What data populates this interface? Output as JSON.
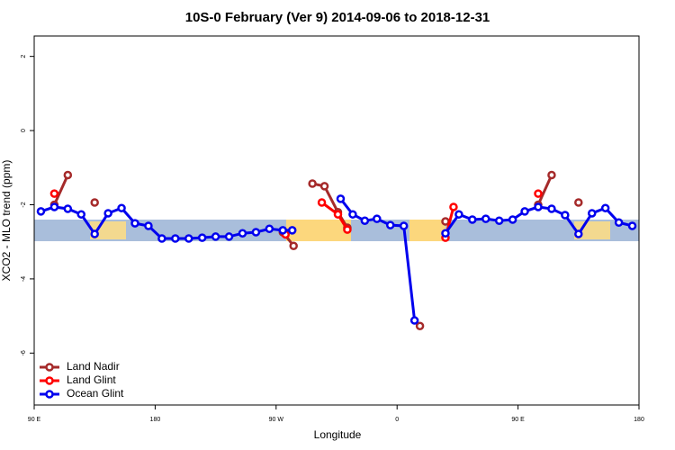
{
  "chart_data": {
    "type": "line",
    "title": "10S-0 February (Ver 9)   2014-09-06 to 2018-12-31",
    "xlabel": "Longitude",
    "ylabel": "XCO2 - MLO trend (ppm)",
    "xlim": [
      90,
      540
    ],
    "ylim": [
      -7.4,
      2.55
    ],
    "xticks": [
      {
        "value": 90,
        "label": "90 E"
      },
      180,
      {
        "value": 270,
        "label": "90 W"
      },
      {
        "value": 360,
        "label": "0"
      },
      {
        "value": 450,
        "label": "90 E"
      },
      {
        "value": 540,
        "label": "180"
      }
    ],
    "yticks": [
      2,
      0,
      -2,
      -4,
      -6
    ],
    "legend": "lower left",
    "series": [
      {
        "name": "Land Nadir",
        "color": "#a52a2a",
        "x": [
          105,
          115,
          125,
          135,
          145,
          275,
          283,
          290,
          297,
          306,
          316,
          323,
          330,
          377,
          386,
          396,
          406,
          465,
          475,
          485,
          495
        ],
        "values": [
          -2.0,
          -1.2,
          null,
          -1.94,
          null,
          -2.74,
          -3.11,
          null,
          -1.43,
          -1.5,
          -2.2,
          -2.62,
          null,
          -5.27,
          null,
          -2.45,
          null,
          -2.0,
          -1.2,
          null,
          -1.94
        ]
      },
      {
        "name": "Land Glint",
        "color": "#ff0000",
        "x": [
          105,
          115,
          277,
          290,
          304,
          316,
          323,
          330,
          396,
          402,
          420,
          465
        ],
        "values": [
          -1.7,
          null,
          -2.8,
          null,
          -1.94,
          -2.26,
          -2.67,
          null,
          -2.89,
          -2.06,
          null,
          -1.7
        ]
      },
      {
        "name": "Ocean Glint",
        "color": "#0000ee",
        "x": [
          95,
          105,
          115,
          125,
          135,
          145,
          155,
          165,
          175,
          185,
          195,
          205,
          215,
          225,
          235,
          245,
          255,
          265,
          275,
          282,
          300,
          318,
          327,
          336,
          345,
          355,
          365,
          373,
          385,
          396,
          406,
          416,
          426,
          436,
          446,
          455,
          465,
          475,
          485,
          495,
          505,
          515,
          525,
          535
        ],
        "values": [
          -2.18,
          -2.06,
          -2.11,
          -2.26,
          -2.79,
          -2.23,
          -2.09,
          -2.5,
          -2.57,
          -2.91,
          -2.91,
          -2.91,
          -2.89,
          -2.86,
          -2.86,
          -2.77,
          -2.74,
          -2.65,
          -2.69,
          -2.69,
          null,
          -1.84,
          -2.26,
          -2.43,
          -2.38,
          -2.55,
          -2.57,
          -5.12,
          null,
          -2.77,
          -2.26,
          -2.4,
          -2.38,
          -2.43,
          -2.4,
          -2.18,
          -2.06,
          -2.11,
          -2.28,
          -2.79,
          -2.23,
          -2.09,
          -2.48,
          -2.57
        ]
      }
    ]
  }
}
